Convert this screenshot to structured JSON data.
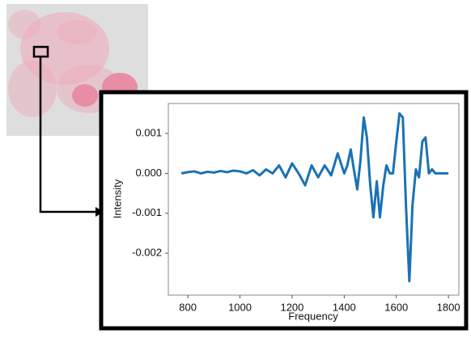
{
  "chart_data": {
    "type": "line",
    "xlabel": "Frequency",
    "ylabel": "Intensity",
    "x": [
      775,
      800,
      825,
      850,
      875,
      900,
      925,
      950,
      975,
      1000,
      1025,
      1050,
      1075,
      1100,
      1125,
      1150,
      1175,
      1200,
      1225,
      1250,
      1275,
      1300,
      1325,
      1350,
      1375,
      1400,
      1412,
      1425,
      1437,
      1450,
      1462,
      1475,
      1487,
      1500,
      1512,
      1525,
      1537,
      1550,
      1562,
      1575,
      1587,
      1600,
      1612,
      1625,
      1637,
      1650,
      1662,
      1675,
      1687,
      1700,
      1712,
      1725,
      1737,
      1750,
      1775,
      1800
    ],
    "values": [
      0,
      3e-05,
      5e-05,
      0,
      4e-05,
      2e-05,
      6e-05,
      3e-05,
      7e-05,
      5e-05,
      0,
      8e-05,
      -5e-05,
      0.0001,
      0,
      0.0002,
      -0.0001,
      0.00025,
      0,
      -0.0003,
      0.0002,
      -0.0001,
      0.0002,
      -5e-05,
      0.0005,
      0,
      0.0002,
      0.0006,
      0.0001,
      -0.0004,
      0.0003,
      0.0014,
      0.0009,
      -0.0003,
      -0.0011,
      -0.0002,
      -0.0011,
      -0.0003,
      0.0002,
      0,
      0,
      0.0008,
      0.0015,
      0.0014,
      -0.0008,
      -0.0027,
      -0.0008,
      0.0001,
      -0.0001,
      0.0008,
      0.0009,
      0,
      0.0001,
      0,
      0,
      0
    ],
    "color": "#1a72b4",
    "xlim": [
      725,
      1840
    ],
    "xticks": [
      800,
      1000,
      1200,
      1400,
      1600,
      1800
    ],
    "ylim": [
      -0.00305,
      0.00175
    ],
    "yticks": [
      0.001,
      {
        "value": 0,
        "label": "0.000"
      },
      -0.001,
      -0.002
    ]
  }
}
